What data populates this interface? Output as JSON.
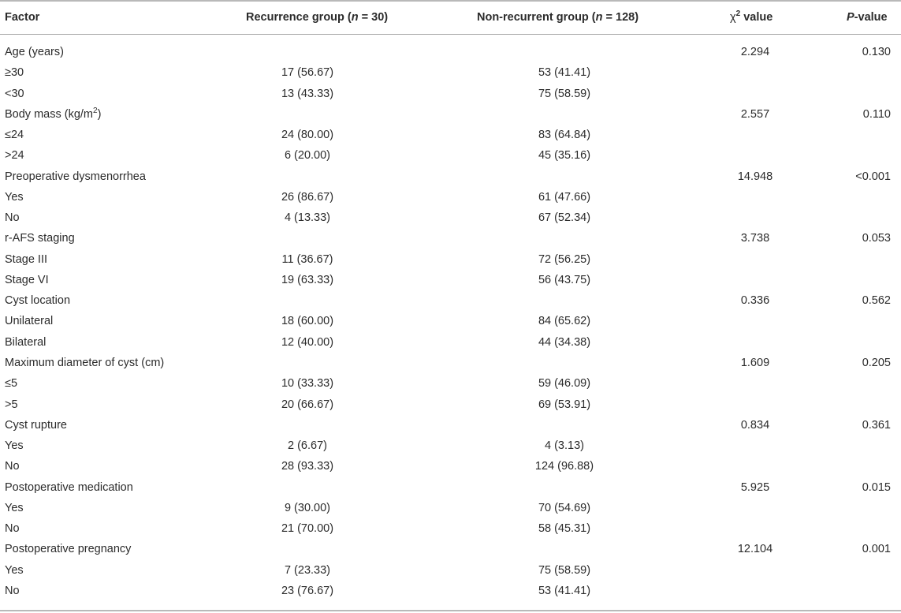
{
  "header": {
    "factor": "Factor",
    "recurrence_prefix": "Recurrence group (",
    "recurrence_n": "n",
    "recurrence_suffix": " = 30)",
    "nonrecurrent_prefix": "Non-recurrent group (",
    "nonrecurrent_n": "n",
    "nonrecurrent_suffix": " = 128)",
    "chi_symbol": "χ",
    "chi_sup": "2",
    "chi_suffix": " value",
    "p_italic": "P",
    "p_suffix": "-value"
  },
  "rows": [
    {
      "factor": "Age (years)",
      "rec": "",
      "non": "",
      "chi": "2.294",
      "p": "0.130"
    },
    {
      "factor": "≥30",
      "rec": "17 (56.67)",
      "non": "53 (41.41)",
      "chi": "",
      "p": ""
    },
    {
      "factor": "<30",
      "rec": "13 (43.33)",
      "non": "75 (58.59)",
      "chi": "",
      "p": ""
    },
    {
      "factor": "Body mass (kg/m",
      "sup": "2",
      "factor_end": ")",
      "rec": "",
      "non": "",
      "chi": "2.557",
      "p": "0.110"
    },
    {
      "factor": "≤24",
      "rec": "24 (80.00)",
      "non": "83 (64.84)",
      "chi": "",
      "p": ""
    },
    {
      "factor": ">24",
      "rec": "6 (20.00)",
      "non": "45 (35.16)",
      "chi": "",
      "p": ""
    },
    {
      "factor": "Preoperative dysmenorrhea",
      "rec": "",
      "non": "",
      "chi": "14.948",
      "p": "<0.001"
    },
    {
      "factor": "Yes",
      "rec": "26 (86.67)",
      "non": "61 (47.66)",
      "chi": "",
      "p": ""
    },
    {
      "factor": "No",
      "rec": "4 (13.33)",
      "non": "67 (52.34)",
      "chi": "",
      "p": ""
    },
    {
      "factor": "r-AFS staging",
      "rec": "",
      "non": "",
      "chi": "3.738",
      "p": "0.053"
    },
    {
      "factor": "Stage III",
      "rec": "11 (36.67)",
      "non": "72 (56.25)",
      "chi": "",
      "p": ""
    },
    {
      "factor": "Stage VI",
      "rec": "19 (63.33)",
      "non": "56 (43.75)",
      "chi": "",
      "p": ""
    },
    {
      "factor": "Cyst location",
      "rec": "",
      "non": "",
      "chi": "0.336",
      "p": "0.562"
    },
    {
      "factor": "Unilateral",
      "rec": "18 (60.00)",
      "non": "84 (65.62)",
      "chi": "",
      "p": ""
    },
    {
      "factor": "Bilateral",
      "rec": "12 (40.00)",
      "non": "44 (34.38)",
      "chi": "",
      "p": ""
    },
    {
      "factor": "Maximum diameter of cyst (cm)",
      "rec": "",
      "non": "",
      "chi": "1.609",
      "p": "0.205"
    },
    {
      "factor": "≤5",
      "rec": "10 (33.33)",
      "non": "59 (46.09)",
      "chi": "",
      "p": ""
    },
    {
      "factor": ">5",
      "rec": "20 (66.67)",
      "non": "69 (53.91)",
      "chi": "",
      "p": ""
    },
    {
      "factor": "Cyst rupture",
      "rec": "",
      "non": "",
      "chi": "0.834",
      "p": "0.361"
    },
    {
      "factor": "Yes",
      "rec": "2 (6.67)",
      "non": "4 (3.13)",
      "chi": "",
      "p": ""
    },
    {
      "factor": "No",
      "rec": "28 (93.33)",
      "non": "124 (96.88)",
      "chi": "",
      "p": ""
    },
    {
      "factor": "Postoperative medication",
      "rec": "",
      "non": "",
      "chi": "5.925",
      "p": "0.015"
    },
    {
      "factor": "Yes",
      "rec": "9 (30.00)",
      "non": "70 (54.69)",
      "chi": "",
      "p": ""
    },
    {
      "factor": "No",
      "rec": "21 (70.00)",
      "non": "58 (45.31)",
      "chi": "",
      "p": ""
    },
    {
      "factor": "Postoperative pregnancy",
      "rec": "",
      "non": "",
      "chi": "12.104",
      "p": "0.001"
    },
    {
      "factor": "Yes",
      "rec": "7 (23.33)",
      "non": "75 (58.59)",
      "chi": "",
      "p": ""
    },
    {
      "factor": "No",
      "rec": "23 (76.67)",
      "non": "53 (41.41)",
      "chi": "",
      "p": ""
    }
  ]
}
